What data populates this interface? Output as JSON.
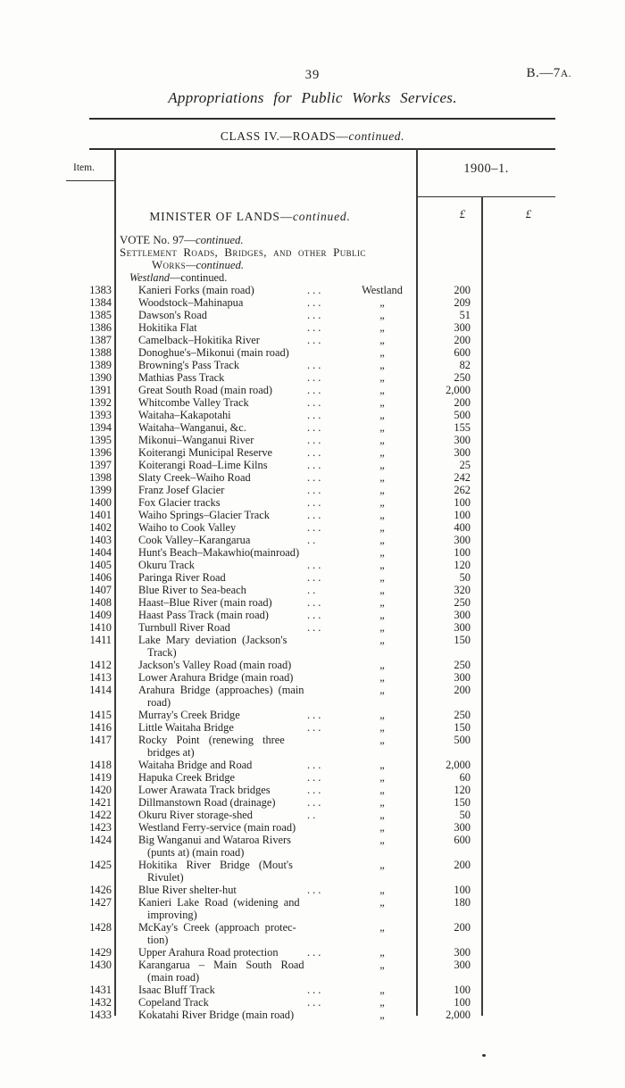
{
  "page": {
    "page_number": "39",
    "paper_ref_main": "B.—7",
    "paper_ref_suffix": "A.",
    "title": "Appropriations for Public Works Services.",
    "class_heading_roman": "CLASS IV.—ROADS—",
    "class_heading_italic": "continued."
  },
  "table": {
    "item_header": "Item.",
    "year_header": "1900–1.",
    "pound1": "£",
    "pound2": "£",
    "section": {
      "minister_roman": "MINISTER OF LANDS—",
      "minister_italic": "continued.",
      "vote_roman": "VOTE No. 97—",
      "vote_italic": "continued.",
      "settlement_line": "Settlement Roads, Bridges, and other Public",
      "works_sc": "Works",
      "works_italic": "—continued.",
      "district_italic": "Westland",
      "district_roman": "—continued."
    },
    "rows": [
      {
        "item": "1383",
        "desc": "Kanieri Forks (main road)",
        "dots": "...",
        "loc": "Westland",
        "amount": "200"
      },
      {
        "item": "1384",
        "desc": "Woodstock–Mahinapua",
        "dots": "...",
        "loc": "„",
        "amount": "209"
      },
      {
        "item": "1385",
        "desc": "Dawson's Road",
        "dots": "...",
        "loc": "„",
        "amount": "51"
      },
      {
        "item": "1386",
        "desc": "Hokitika Flat",
        "dots": "...",
        "loc": "„",
        "amount": "300"
      },
      {
        "item": "1387",
        "desc": "Camelback–Hokitika River",
        "dots": "...",
        "loc": "„",
        "amount": "200"
      },
      {
        "item": "1388",
        "desc": "Donoghue's–Mikonui (main road)",
        "loc": "„",
        "amount": "600"
      },
      {
        "item": "1389",
        "desc": "Browning's Pass Track",
        "dots": "...",
        "loc": "„",
        "amount": "82"
      },
      {
        "item": "1390",
        "desc": "Mathias Pass Track",
        "dots": "...",
        "loc": "„",
        "amount": "250"
      },
      {
        "item": "1391",
        "desc": "Great South Road (main road)",
        "dots": "...",
        "loc": "„",
        "amount": "2,000"
      },
      {
        "item": "1392",
        "desc": "Whitcombe Valley Track",
        "dots": "...",
        "loc": "„",
        "amount": "200"
      },
      {
        "item": "1393",
        "desc": "Waitaha–Kakapotahi",
        "dots": "...",
        "loc": "„",
        "amount": "500"
      },
      {
        "item": "1394",
        "desc": "Waitaha–Wanganui, &c.",
        "dots": "...",
        "loc": "„",
        "amount": "155"
      },
      {
        "item": "1395",
        "desc": "Mikonui–Wanganui River",
        "dots": "...",
        "loc": "„",
        "amount": "300"
      },
      {
        "item": "1396",
        "desc": "Koiterangi Municipal Reserve",
        "dots": "...",
        "loc": "„",
        "amount": "300"
      },
      {
        "item": "1397",
        "desc": "Koiterangi Road–Lime Kilns",
        "dots": "...",
        "loc": "„",
        "amount": "25"
      },
      {
        "item": "1398",
        "desc": "Slaty Creek–Waiho Road",
        "dots": "...",
        "loc": "„",
        "amount": "242"
      },
      {
        "item": "1399",
        "desc": "Franz Josef Glacier",
        "dots": "...",
        "loc": "„",
        "amount": "262"
      },
      {
        "item": "1400",
        "desc": "Fox Glacier tracks",
        "dots": "...",
        "loc": "„",
        "amount": "100"
      },
      {
        "item": "1401",
        "desc": "Waiho Springs–Glacier Track",
        "dots": "...",
        "loc": "„",
        "amount": "100"
      },
      {
        "item": "1402",
        "desc": "Waiho to Cook Valley",
        "dots": "...",
        "loc": "„",
        "amount": "400"
      },
      {
        "item": "1403",
        "desc": "Cook Valley–Karangarua",
        "dots": "..",
        "loc": "„",
        "amount": "300"
      },
      {
        "item": "1404",
        "desc": "Hunt's Beach–Makawhio(mainroad)",
        "loc": "„",
        "amount": "100"
      },
      {
        "item": "1405",
        "desc": "Okuru Track",
        "dots": "...",
        "loc": "„",
        "amount": "120"
      },
      {
        "item": "1406",
        "desc": "Paringa River Road",
        "dots": "...",
        "loc": "„",
        "amount": "50"
      },
      {
        "item": "1407",
        "desc": "Blue River to Sea-beach",
        "dots": "..",
        "loc": "„",
        "amount": "320"
      },
      {
        "item": "1408",
        "desc": "Haast–Blue River (main road)",
        "dots": "...",
        "loc": "„",
        "amount": "250"
      },
      {
        "item": "1409",
        "desc": "Haast Pass Track (main road)",
        "dots": "...",
        "loc": "„",
        "amount": "300"
      },
      {
        "item": "1410",
        "desc": "Turnbull River Road",
        "dots": "...",
        "loc": "„",
        "amount": "300"
      },
      {
        "item": "1411",
        "desc": "Lake Mary deviation (Jackson's",
        "desc2": "Track)",
        "loc": "„",
        "amount": "150",
        "spread": 1
      },
      {
        "item": "1412",
        "desc": "Jackson's Valley Road (main road)",
        "loc": "„",
        "amount": "250"
      },
      {
        "item": "1413",
        "desc": "Lower Arahura Bridge (main road)",
        "loc": "„",
        "amount": "300"
      },
      {
        "item": "1414",
        "desc": "Arahura Bridge (approaches) (main",
        "desc2": "road)",
        "loc": "„",
        "amount": "200",
        "spread": 1
      },
      {
        "item": "1415",
        "desc": "Murray's Creek Bridge",
        "dots": "...",
        "loc": "„",
        "amount": "250"
      },
      {
        "item": "1416",
        "desc": "Little Waitaha Bridge",
        "dots": "...",
        "loc": "„",
        "amount": "150"
      },
      {
        "item": "1417",
        "desc": "Rocky Point (renewing three",
        "desc2": "bridges at)",
        "loc": "„",
        "amount": "500",
        "spread": 2
      },
      {
        "item": "1418",
        "desc": "Waitaha Bridge and Road",
        "dots": "...",
        "loc": "„",
        "amount": "2,000"
      },
      {
        "item": "1419",
        "desc": "Hapuka Creek Bridge",
        "dots": "...",
        "loc": "„",
        "amount": "60"
      },
      {
        "item": "1420",
        "desc": "Lower Arawata Track bridges",
        "dots": "...",
        "loc": "„",
        "amount": "120"
      },
      {
        "item": "1421",
        "desc": "Dillmanstown Road (drainage)",
        "dots": "...",
        "loc": "„",
        "amount": "150"
      },
      {
        "item": "1422",
        "desc": "Okuru River storage-shed",
        "dots": "..",
        "loc": "„",
        "amount": "50"
      },
      {
        "item": "1423",
        "desc": "Westland Ferry-service (main road)",
        "loc": "„",
        "amount": "300"
      },
      {
        "item": "1424",
        "desc": "Big Wanganui and Wataroa Rivers",
        "desc2": "(punts at) (main road)",
        "loc": "„",
        "amount": "600"
      },
      {
        "item": "1425",
        "desc": "Hokitika River Bridge (Mout's",
        "desc2": "Rivulet)",
        "loc": "„",
        "amount": "200",
        "spread": 2
      },
      {
        "item": "1426",
        "desc": "Blue River shelter-hut",
        "dots": "...",
        "loc": "„",
        "amount": "100"
      },
      {
        "item": "1427",
        "desc": "Kanieri Lake Road (widening and",
        "desc2": "improving)",
        "loc": "„",
        "amount": "180",
        "spread": 1
      },
      {
        "item": "1428",
        "desc": "McKay's Creek (approach protec-",
        "desc2": "tion)",
        "loc": "„",
        "amount": "200",
        "spread": 1
      },
      {
        "item": "1429",
        "desc": "Upper Arahura Road protection",
        "dots": "...",
        "loc": "„",
        "amount": "300"
      },
      {
        "item": "1430",
        "desc": "Karangarua – Main South Road",
        "desc2": "(main road)",
        "loc": "„",
        "amount": "300",
        "spread": 2
      },
      {
        "item": "1431",
        "desc": "Isaac Bluff Track",
        "dots": "...",
        "loc": "„",
        "amount": "100"
      },
      {
        "item": "1432",
        "desc": "Copeland Track",
        "dots": "...",
        "loc": "„",
        "amount": "100"
      },
      {
        "item": "1433",
        "desc": "Kokatahi River Bridge (main road)",
        "loc": "„",
        "amount": "2,000"
      }
    ]
  }
}
